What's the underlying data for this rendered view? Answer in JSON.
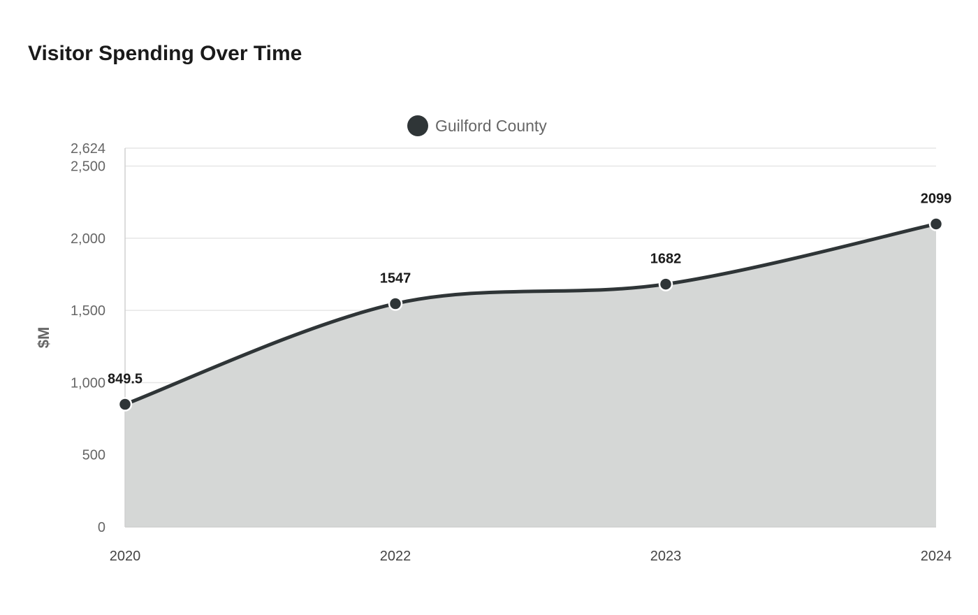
{
  "title": "Visitor Spending Over Time",
  "chart_data": {
    "type": "area",
    "title": "Visitor Spending Over Time",
    "xlabel": "",
    "ylabel": "$M",
    "categories": [
      "2020",
      "2022",
      "2023",
      "2024"
    ],
    "series": [
      {
        "name": "Guilford County",
        "values": [
          849.5,
          1547,
          1682,
          2099
        ],
        "data_labels": [
          "849.5",
          "1547",
          "1682",
          "2099"
        ],
        "color": "#2f3537",
        "fill_color": "#d5d7d6"
      }
    ],
    "ylim": [
      0,
      2624
    ],
    "y_ticks": [
      {
        "value": 0,
        "label": "0"
      },
      {
        "value": 500,
        "label": "500"
      },
      {
        "value": 1000,
        "label": "1,000"
      },
      {
        "value": 1500,
        "label": "1,500"
      },
      {
        "value": 2000,
        "label": "2,000"
      },
      {
        "value": 2500,
        "label": "2,500"
      },
      {
        "value": 2624,
        "label": "2,624"
      }
    ],
    "grid": true,
    "legend_position": "top-center"
  }
}
